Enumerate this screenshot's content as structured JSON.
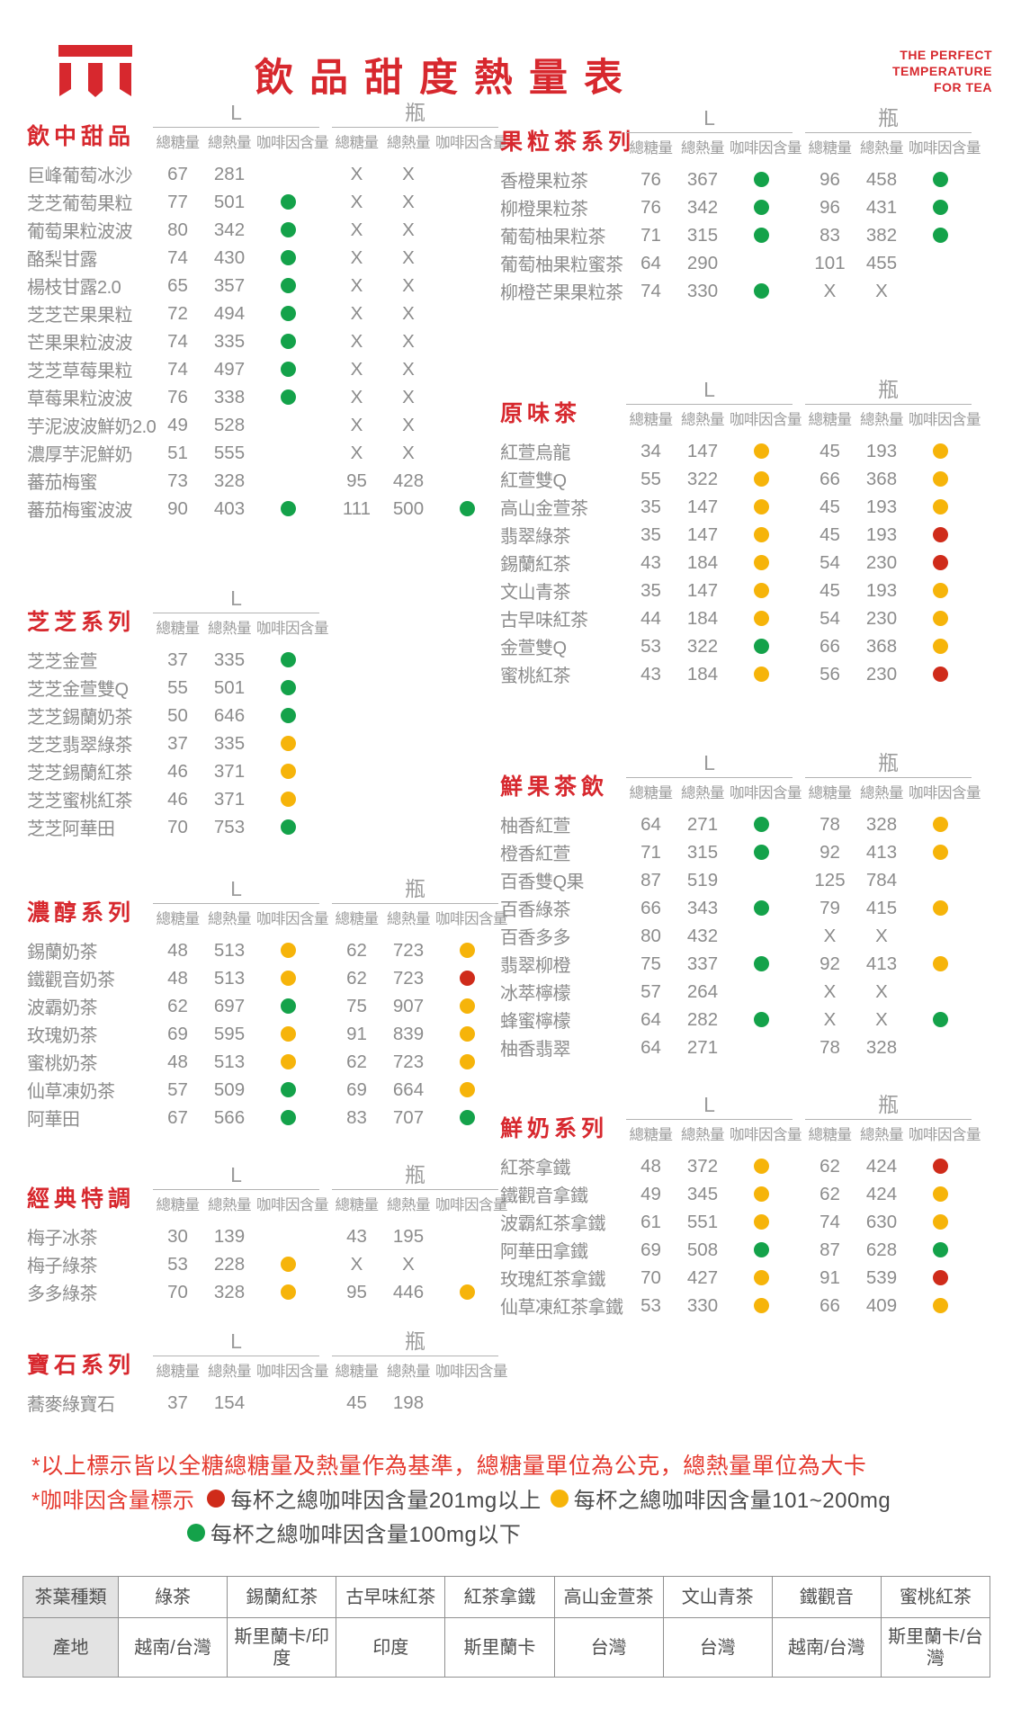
{
  "colors": {
    "accent_red": "#d7282e",
    "note_red": "#e5392e",
    "dot_green": "#14a24a",
    "dot_yellow": "#f6b40a",
    "dot_red": "#cf2b1a",
    "text_gray": "#8c8c8c"
  },
  "header": {
    "title": "飲品甜度熱量表",
    "tagline_lines": [
      "THE PERFECT",
      "TEMPERATURE",
      "FOR TEA"
    ]
  },
  "column_headers": {
    "sizes": {
      "large": "L",
      "bottle": "瓶"
    },
    "metrics": [
      "總糖量",
      "總熱量",
      "咖啡因含量"
    ]
  },
  "sections": [
    {
      "title": "飲中甜品",
      "sizes": [
        "L",
        "瓶"
      ],
      "rows": [
        {
          "name": "巨峰葡萄冰沙",
          "l": [
            "67",
            "281",
            null
          ],
          "b": [
            "X",
            "X",
            null
          ]
        },
        {
          "name": "芝芝葡萄果粒",
          "l": [
            "77",
            "501",
            "green"
          ],
          "b": [
            "X",
            "X",
            null
          ]
        },
        {
          "name": "葡萄果粒波波",
          "l": [
            "80",
            "342",
            "green"
          ],
          "b": [
            "X",
            "X",
            null
          ]
        },
        {
          "name": "酪梨甘露",
          "l": [
            "74",
            "430",
            "green"
          ],
          "b": [
            "X",
            "X",
            null
          ]
        },
        {
          "name": "楊枝甘露2.0",
          "l": [
            "65",
            "357",
            "green"
          ],
          "b": [
            "X",
            "X",
            null
          ]
        },
        {
          "name": "芝芝芒果果粒",
          "l": [
            "72",
            "494",
            "green"
          ],
          "b": [
            "X",
            "X",
            null
          ]
        },
        {
          "name": "芒果果粒波波",
          "l": [
            "74",
            "335",
            "green"
          ],
          "b": [
            "X",
            "X",
            null
          ]
        },
        {
          "name": "芝芝草莓果粒",
          "l": [
            "74",
            "497",
            "green"
          ],
          "b": [
            "X",
            "X",
            null
          ]
        },
        {
          "name": "草莓果粒波波",
          "l": [
            "76",
            "338",
            "green"
          ],
          "b": [
            "X",
            "X",
            null
          ]
        },
        {
          "name": "芋泥波波鮮奶2.0",
          "l": [
            "49",
            "528",
            null
          ],
          "b": [
            "X",
            "X",
            null
          ]
        },
        {
          "name": "濃厚芋泥鮮奶",
          "l": [
            "51",
            "555",
            null
          ],
          "b": [
            "X",
            "X",
            null
          ]
        },
        {
          "name": "蕃茄梅蜜",
          "l": [
            "73",
            "328",
            null
          ],
          "b": [
            "95",
            "428",
            null
          ]
        },
        {
          "name": "蕃茄梅蜜波波",
          "l": [
            "90",
            "403",
            "green"
          ],
          "b": [
            "111",
            "500",
            "green"
          ]
        }
      ]
    },
    {
      "title": "芝芝系列",
      "sizes": [
        "L"
      ],
      "rows": [
        {
          "name": "芝芝金萱",
          "l": [
            "37",
            "335",
            "green"
          ]
        },
        {
          "name": "芝芝金萱雙Q",
          "l": [
            "55",
            "501",
            "green"
          ]
        },
        {
          "name": "芝芝錫蘭奶茶",
          "l": [
            "50",
            "646",
            "green"
          ]
        },
        {
          "name": "芝芝翡翠綠茶",
          "l": [
            "37",
            "335",
            "yellow"
          ]
        },
        {
          "name": "芝芝錫蘭紅茶",
          "l": [
            "46",
            "371",
            "yellow"
          ]
        },
        {
          "name": "芝芝蜜桃紅茶",
          "l": [
            "46",
            "371",
            "yellow"
          ]
        },
        {
          "name": "芝芝阿華田",
          "l": [
            "70",
            "753",
            "green"
          ]
        }
      ]
    },
    {
      "title": "濃醇系列",
      "sizes": [
        "L",
        "瓶"
      ],
      "rows": [
        {
          "name": "錫蘭奶茶",
          "l": [
            "48",
            "513",
            "yellow"
          ],
          "b": [
            "62",
            "723",
            "yellow"
          ]
        },
        {
          "name": "鐵觀音奶茶",
          "l": [
            "48",
            "513",
            "yellow"
          ],
          "b": [
            "62",
            "723",
            "red"
          ]
        },
        {
          "name": "波霸奶茶",
          "l": [
            "62",
            "697",
            "green"
          ],
          "b": [
            "75",
            "907",
            "yellow"
          ]
        },
        {
          "name": "玫瑰奶茶",
          "l": [
            "69",
            "595",
            "yellow"
          ],
          "b": [
            "91",
            "839",
            "yellow"
          ]
        },
        {
          "name": "蜜桃奶茶",
          "l": [
            "48",
            "513",
            "yellow"
          ],
          "b": [
            "62",
            "723",
            "yellow"
          ]
        },
        {
          "name": "仙草凍奶茶",
          "l": [
            "57",
            "509",
            "green"
          ],
          "b": [
            "69",
            "664",
            "yellow"
          ]
        },
        {
          "name": "阿華田",
          "l": [
            "67",
            "566",
            "green"
          ],
          "b": [
            "83",
            "707",
            "green"
          ]
        }
      ]
    },
    {
      "title": "經典特調",
      "sizes": [
        "L",
        "瓶"
      ],
      "rows": [
        {
          "name": "梅子冰茶",
          "l": [
            "30",
            "139",
            null
          ],
          "b": [
            "43",
            "195",
            null
          ]
        },
        {
          "name": "梅子綠茶",
          "l": [
            "53",
            "228",
            "yellow"
          ],
          "b": [
            "X",
            "X",
            null
          ]
        },
        {
          "name": "多多綠茶",
          "l": [
            "70",
            "328",
            "yellow"
          ],
          "b": [
            "95",
            "446",
            "yellow"
          ]
        }
      ]
    },
    {
      "title": "寶石系列",
      "sizes": [
        "L",
        "瓶"
      ],
      "rows": [
        {
          "name": "蕎麥綠寶石",
          "l": [
            "37",
            "154",
            null
          ],
          "b": [
            "45",
            "198",
            null
          ]
        }
      ]
    },
    {
      "title": "果粒茶系列",
      "sizes": [
        "L",
        "瓶"
      ],
      "rows": [
        {
          "name": "香橙果粒茶",
          "l": [
            "76",
            "367",
            "green"
          ],
          "b": [
            "96",
            "458",
            "green"
          ]
        },
        {
          "name": "柳橙果粒茶",
          "l": [
            "76",
            "342",
            "green"
          ],
          "b": [
            "96",
            "431",
            "green"
          ]
        },
        {
          "name": "葡萄柚果粒茶",
          "l": [
            "71",
            "315",
            "green"
          ],
          "b": [
            "83",
            "382",
            "green"
          ]
        },
        {
          "name": "葡萄柚果粒蜜茶",
          "l": [
            "64",
            "290",
            null
          ],
          "b": [
            "101",
            "455",
            null
          ]
        },
        {
          "name": "柳橙芒果果粒茶",
          "l": [
            "74",
            "330",
            "green"
          ],
          "b": [
            "X",
            "X",
            null
          ]
        }
      ]
    },
    {
      "title": "原味茶",
      "sizes": [
        "L",
        "瓶"
      ],
      "rows": [
        {
          "name": "紅萱烏龍",
          "l": [
            "34",
            "147",
            "yellow"
          ],
          "b": [
            "45",
            "193",
            "yellow"
          ]
        },
        {
          "name": "紅萱雙Q",
          "l": [
            "55",
            "322",
            "yellow"
          ],
          "b": [
            "66",
            "368",
            "yellow"
          ]
        },
        {
          "name": "高山金萱茶",
          "l": [
            "35",
            "147",
            "yellow"
          ],
          "b": [
            "45",
            "193",
            "yellow"
          ]
        },
        {
          "name": "翡翠綠茶",
          "l": [
            "35",
            "147",
            "yellow"
          ],
          "b": [
            "45",
            "193",
            "red"
          ]
        },
        {
          "name": "錫蘭紅茶",
          "l": [
            "43",
            "184",
            "yellow"
          ],
          "b": [
            "54",
            "230",
            "red"
          ]
        },
        {
          "name": "文山青茶",
          "l": [
            "35",
            "147",
            "yellow"
          ],
          "b": [
            "45",
            "193",
            "yellow"
          ]
        },
        {
          "name": "古早味紅茶",
          "l": [
            "44",
            "184",
            "yellow"
          ],
          "b": [
            "54",
            "230",
            "yellow"
          ]
        },
        {
          "name": "金萱雙Q",
          "l": [
            "53",
            "322",
            "green"
          ],
          "b": [
            "66",
            "368",
            "yellow"
          ]
        },
        {
          "name": "蜜桃紅茶",
          "l": [
            "43",
            "184",
            "yellow"
          ],
          "b": [
            "56",
            "230",
            "red"
          ]
        }
      ]
    },
    {
      "title": "鮮果茶飲",
      "sizes": [
        "L",
        "瓶"
      ],
      "rows": [
        {
          "name": "柚香紅萱",
          "l": [
            "64",
            "271",
            "green"
          ],
          "b": [
            "78",
            "328",
            "yellow"
          ]
        },
        {
          "name": "橙香紅萱",
          "l": [
            "71",
            "315",
            "green"
          ],
          "b": [
            "92",
            "413",
            "yellow"
          ]
        },
        {
          "name": "百香雙Q果",
          "l": [
            "87",
            "519",
            null
          ],
          "b": [
            "125",
            "784",
            null
          ]
        },
        {
          "name": "百香綠茶",
          "l": [
            "66",
            "343",
            "green"
          ],
          "b": [
            "79",
            "415",
            "yellow"
          ]
        },
        {
          "name": "百香多多",
          "l": [
            "80",
            "432",
            null
          ],
          "b": [
            "X",
            "X",
            null
          ]
        },
        {
          "name": "翡翠柳橙",
          "l": [
            "75",
            "337",
            "green"
          ],
          "b": [
            "92",
            "413",
            "yellow"
          ]
        },
        {
          "name": "冰萃檸檬",
          "l": [
            "57",
            "264",
            null
          ],
          "b": [
            "X",
            "X",
            null
          ]
        },
        {
          "name": "蜂蜜檸檬",
          "l": [
            "64",
            "282",
            "green"
          ],
          "b": [
            "X",
            "X",
            "green"
          ]
        },
        {
          "name": "柚香翡翠",
          "l": [
            "64",
            "271",
            null
          ],
          "b": [
            "78",
            "328",
            null
          ]
        }
      ]
    },
    {
      "title": "鮮奶系列",
      "sizes": [
        "L",
        "瓶"
      ],
      "rows": [
        {
          "name": "紅茶拿鐵",
          "l": [
            "48",
            "372",
            "yellow"
          ],
          "b": [
            "62",
            "424",
            "red"
          ]
        },
        {
          "name": "鐵觀音拿鐵",
          "l": [
            "49",
            "345",
            "yellow"
          ],
          "b": [
            "62",
            "424",
            "yellow"
          ]
        },
        {
          "name": "波霸紅茶拿鐵",
          "l": [
            "61",
            "551",
            "yellow"
          ],
          "b": [
            "74",
            "630",
            "yellow"
          ]
        },
        {
          "name": "阿華田拿鐵",
          "l": [
            "69",
            "508",
            "green"
          ],
          "b": [
            "87",
            "628",
            "green"
          ]
        },
        {
          "name": "玫瑰紅茶拿鐵",
          "l": [
            "70",
            "427",
            "yellow"
          ],
          "b": [
            "91",
            "539",
            "red"
          ]
        },
        {
          "name": "仙草凍紅茶拿鐵",
          "l": [
            "53",
            "330",
            "yellow"
          ],
          "b": [
            "66",
            "409",
            "yellow"
          ]
        }
      ]
    }
  ],
  "notes": {
    "note1": "*以上標示皆以全糖總糖量及熱量作為基準，總糖量單位為公克，總熱量單位為大卡",
    "caffeine_label": "*咖啡因含量標示",
    "legend": [
      {
        "color": "red",
        "text": "每杯之總咖啡因含量201mg以上"
      },
      {
        "color": "yellow",
        "text": "每杯之總咖啡因含量101~200mg"
      },
      {
        "color": "green",
        "text": "每杯之總咖啡因含量100mg以下"
      }
    ]
  },
  "origin_table": {
    "row_headers": [
      "茶葉種類",
      "產地"
    ],
    "columns": [
      {
        "type": "綠茶",
        "origin": "越南/台灣"
      },
      {
        "type": "錫蘭紅茶",
        "origin": "斯里蘭卡/印度"
      },
      {
        "type": "古早味紅茶",
        "origin": "印度"
      },
      {
        "type": "紅茶拿鐵",
        "origin": "斯里蘭卡"
      },
      {
        "type": "高山金萱茶",
        "origin": "台灣"
      },
      {
        "type": "文山青茶",
        "origin": "台灣"
      },
      {
        "type": "鐵觀音",
        "origin": "越南/台灣"
      },
      {
        "type": "蜜桃紅茶",
        "origin": "斯里蘭卡/台灣"
      }
    ]
  }
}
